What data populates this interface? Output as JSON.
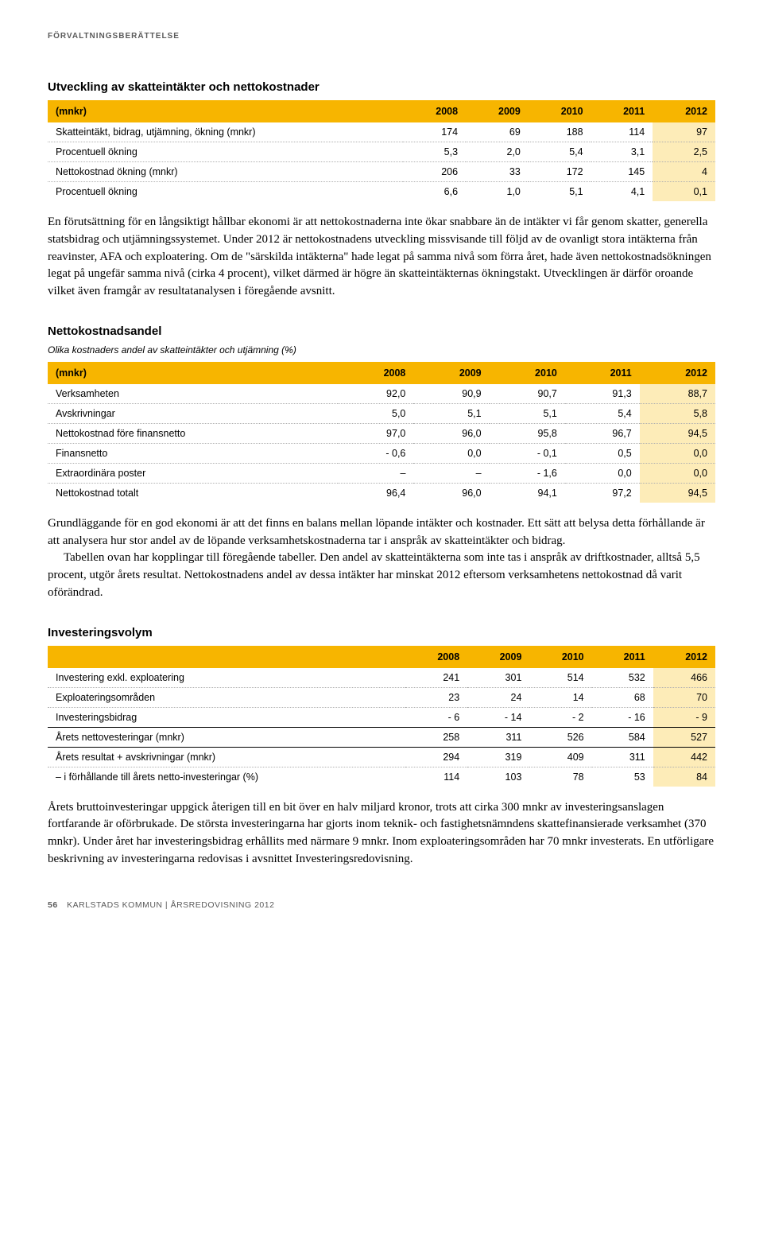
{
  "header": "FÖRVALTNINGSBERÄTTELSE",
  "section1": {
    "title": "Utveckling av skatteintäkter och nettokostnader",
    "table": {
      "columns": [
        "(mnkr)",
        "2008",
        "2009",
        "2010",
        "2011",
        "2012"
      ],
      "rows": [
        [
          "Skatteintäkt, bidrag, utjämning, ökning (mnkr)",
          "174",
          "69",
          "188",
          "114",
          "97"
        ],
        [
          "Procentuell ökning",
          "5,3",
          "2,0",
          "5,4",
          "3,1",
          "2,5"
        ],
        [
          "Nettokostnad ökning (mnkr)",
          "206",
          "33",
          "172",
          "145",
          "4"
        ],
        [
          "Procentuell ökning",
          "6,6",
          "1,0",
          "5,1",
          "4,1",
          "0,1"
        ]
      ]
    },
    "text": "En förutsättning för en långsiktigt hållbar ekonomi är att nettokostnaderna inte ökar snabbare än de intäkter vi får genom skatter, generella statsbidrag och utjämningssystemet. Under 2012 är nettokostnadens utveckling missvisande till följd av de ovanligt stora intäkterna från reavinster, AFA och exploatering. Om de \"särskilda intäkterna\" hade legat på samma nivå som förra året, hade även nettokostnadsökningen legat på ungefär samma nivå (cirka 4 procent), vilket därmed är högre än skatteintäkternas ökningstakt. Utvecklingen är därför oroande vilket även framgår av resultatanalysen i föregående avsnitt."
  },
  "section2": {
    "title": "Nettokostnadsandel",
    "subtitle": "Olika kostnaders andel av skatteintäkter och utjämning (%)",
    "table": {
      "columns": [
        "(mnkr)",
        "2008",
        "2009",
        "2010",
        "2011",
        "2012"
      ],
      "rows": [
        [
          "Verksamheten",
          "92,0",
          "90,9",
          "90,7",
          "91,3",
          "88,7"
        ],
        [
          "Avskrivningar",
          "5,0",
          "5,1",
          "5,1",
          "5,4",
          "5,8"
        ],
        [
          "Nettokostnad före finansnetto",
          "97,0",
          "96,0",
          "95,8",
          "96,7",
          "94,5"
        ],
        [
          "Finansnetto",
          "- 0,6",
          "0,0",
          "- 0,1",
          "0,5",
          "0,0"
        ],
        [
          "Extraordinära poster",
          "–",
          "–",
          "- 1,6",
          "0,0",
          "0,0"
        ],
        [
          "Nettokostnad totalt",
          "96,4",
          "96,0",
          "94,1",
          "97,2",
          "94,5"
        ]
      ]
    },
    "text_p1": "Grundläggande för en god ekonomi är att det finns en balans mellan löpande intäkter och kostnader. Ett sätt att belysa detta förhållande är att analysera hur stor andel av de löpande verksamhetskostnaderna tar i anspråk av skatteintäkter och bidrag.",
    "text_p2": "Tabellen ovan har kopplingar till föregående tabeller. Den andel av skatteintäkterna som inte tas i anspråk av driftkostnader, alltså 5,5 procent, utgör årets resultat. Nettokostnadens andel av dessa intäkter har minskat 2012 eftersom verksamhetens nettokostnad då varit oförändrad."
  },
  "section3": {
    "title": "Investeringsvolym",
    "table": {
      "columns": [
        "",
        "2008",
        "2009",
        "2010",
        "2011",
        "2012"
      ],
      "rows": [
        [
          "Investering exkl. exploatering",
          "241",
          "301",
          "514",
          "532",
          "466"
        ],
        [
          "Exploateringsområden",
          "23",
          "24",
          "14",
          "68",
          "70"
        ],
        [
          "Investeringsbidrag",
          "- 6",
          "- 14",
          "- 2",
          "- 16",
          "- 9"
        ],
        [
          "Årets nettovesteringar (mnkr)",
          "258",
          "311",
          "526",
          "584",
          "527"
        ],
        [
          "Årets resultat + avskrivningar (mnkr)",
          "294",
          "319",
          "409",
          "311",
          "442"
        ],
        [
          "– i förhållande till årets netto-investeringar (%)",
          "114",
          "103",
          "78",
          "53",
          "84"
        ]
      ],
      "solid_border_rows": [
        2,
        3
      ]
    },
    "text": "Årets bruttoinvesteringar uppgick återigen till en bit över en halv miljard kronor, trots att cirka 300 mnkr av investeringsanslagen fortfarande är oförbrukade. De största investeringarna har gjorts inom teknik- och fastighetsnämndens skattefinansierade verksamhet (370 mnkr). Under året har investeringsbidrag erhållits med närmare 9 mnkr. Inom exploateringsområden har 70 mnkr investerats. En utförligare beskrivning av investeringarna redovisas i avsnittet Investeringsredovisning."
  },
  "footer": {
    "pageno": "56",
    "text": "KARLSTADS KOMMUN | ÅRSREDOVISNING 2012"
  }
}
